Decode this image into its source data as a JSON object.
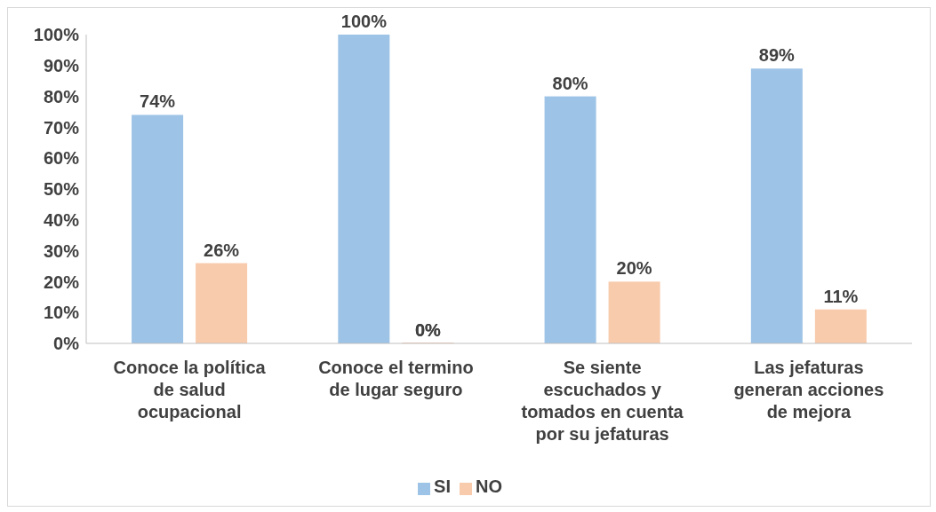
{
  "chart_data": {
    "type": "bar",
    "categories": [
      "Conoce la política de salud ocupacional",
      "Conoce el termino de lugar seguro",
      "Se siente escuchados y tomados en cuenta por su jefaturas",
      "Las jefaturas generan acciones de mejora"
    ],
    "series": [
      {
        "name": "SI",
        "color": "#9dc3e6",
        "values": [
          74,
          100,
          80,
          89
        ],
        "value_labels": [
          "74%",
          "100%",
          "80%",
          "89%"
        ]
      },
      {
        "name": "NO",
        "color": "#f8cbad",
        "values": [
          26,
          0,
          20,
          11
        ],
        "value_labels": [
          "26%",
          "0%",
          "20%",
          "11%"
        ]
      }
    ],
    "ylim": [
      0,
      100
    ],
    "yticks": [
      {
        "value": 0,
        "label": "0%"
      },
      {
        "value": 10,
        "label": "10%"
      },
      {
        "value": 20,
        "label": "20%"
      },
      {
        "value": 30,
        "label": "30%"
      },
      {
        "value": 40,
        "label": "40%"
      },
      {
        "value": 50,
        "label": "50%"
      },
      {
        "value": 60,
        "label": "60%"
      },
      {
        "value": 70,
        "label": "70%"
      },
      {
        "value": 80,
        "label": "80%"
      },
      {
        "value": 90,
        "label": "90%"
      },
      {
        "value": 100,
        "label": "100%"
      }
    ],
    "grid": false,
    "legend": "bottom"
  }
}
